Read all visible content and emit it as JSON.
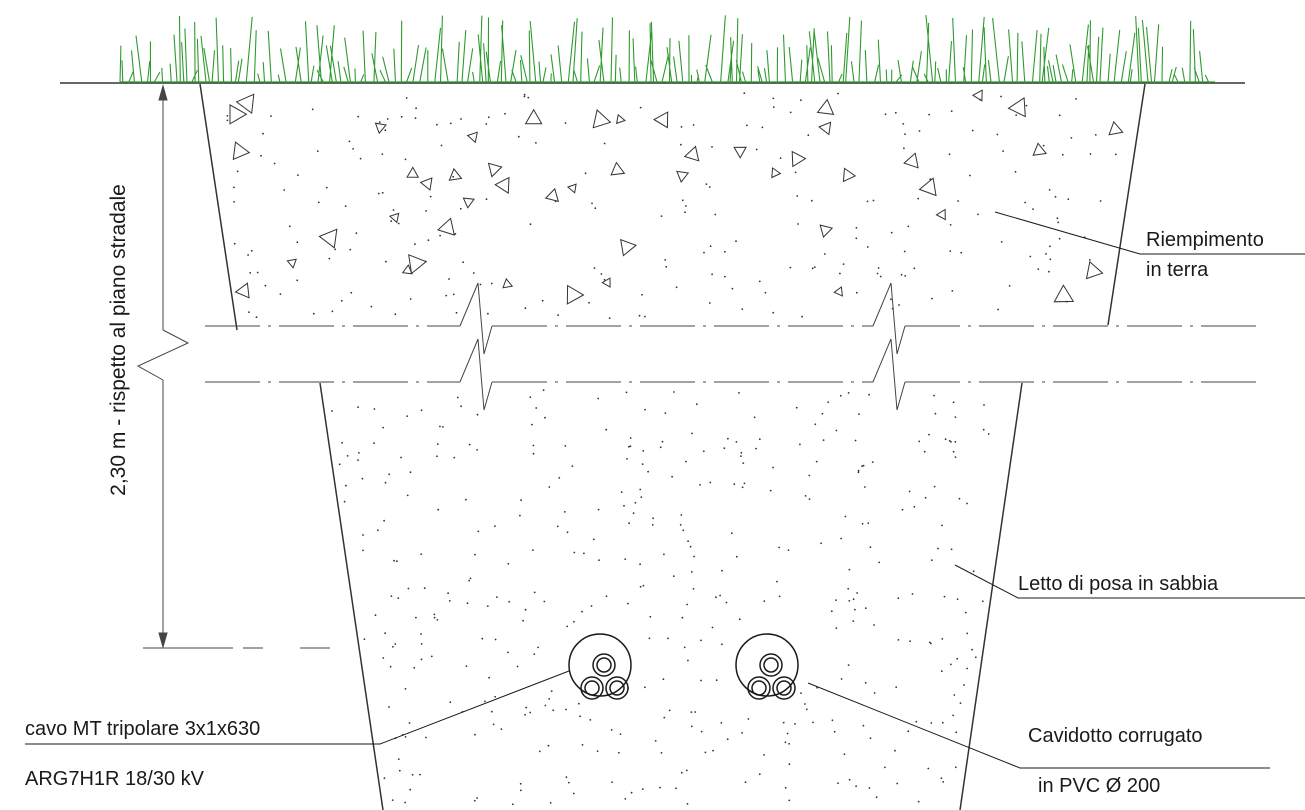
{
  "labels": {
    "depth": "2,30 m - rispetto al piano stradale",
    "backfill_line1": "Riempimento",
    "backfill_line2": "in terra",
    "sand_bed": "Letto di posa in sabbia",
    "cable_line1": "cavo MT tripolare 3x1x630",
    "cable_line2": "ARG7H1R 18/30 kV",
    "conduit_line1": "Cavidotto corrugato",
    "conduit_line2": "in PVC Ø 200"
  },
  "colors": {
    "grass": "#2e9a2e",
    "line": "#333333",
    "text": "#1a1a1a"
  }
}
